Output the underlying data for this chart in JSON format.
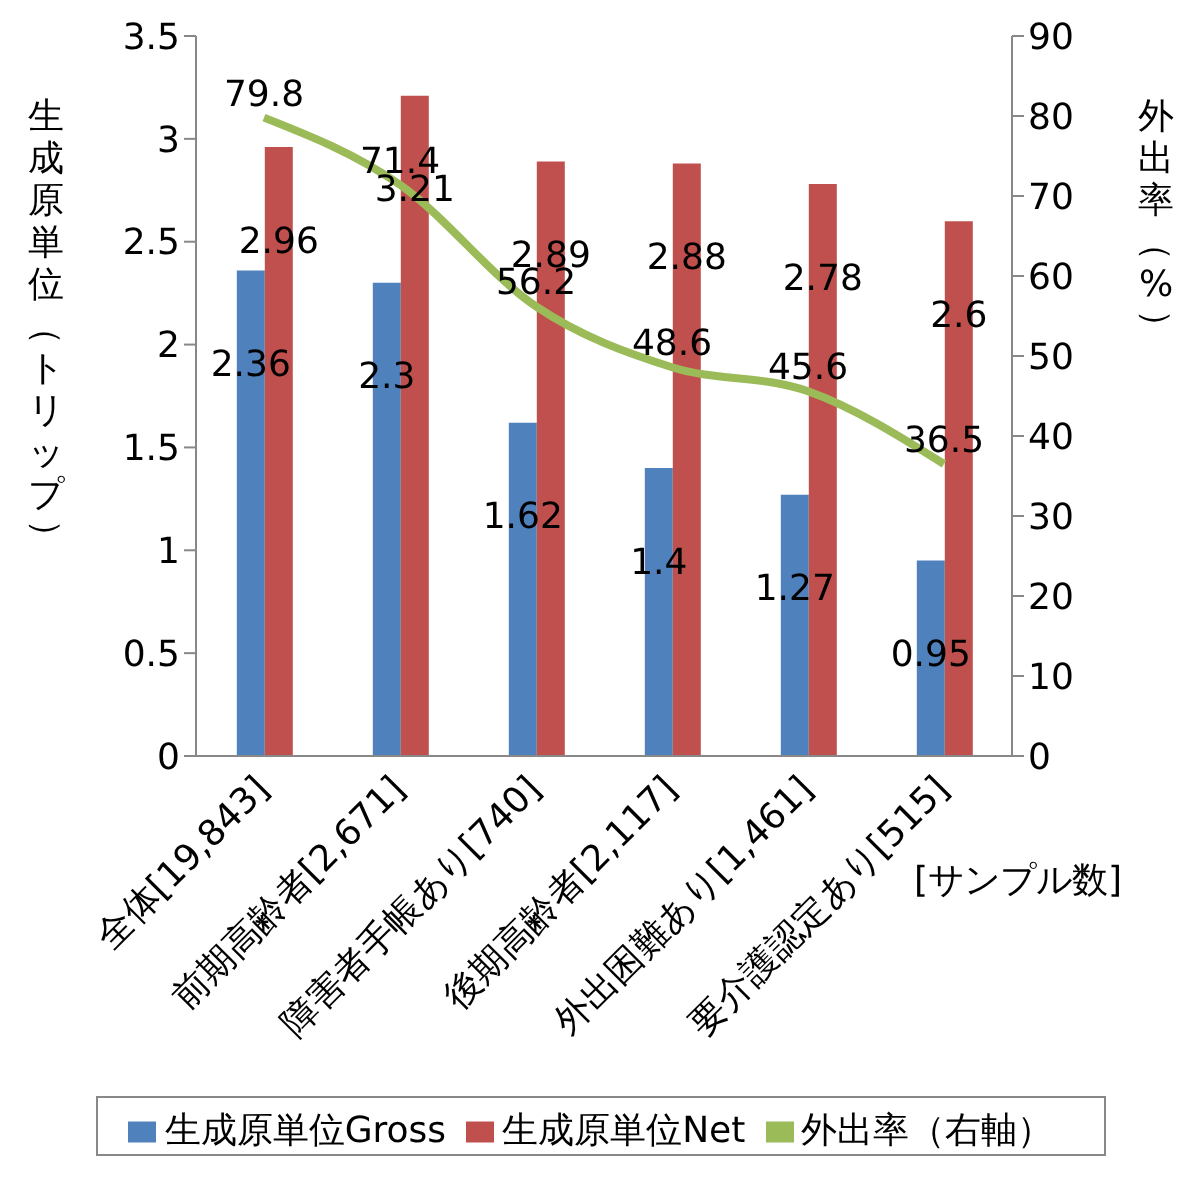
{
  "chart_data": {
    "type": "bar",
    "categories": [
      "全体[19,843]",
      "前期高齢者[2,671]",
      "障害者手帳あり[740]",
      "後期高齢者[2,117]",
      "外出困難あり[1,461]",
      "要介護認定あり[515]"
    ],
    "series": [
      {
        "name": "生成原単位Gross",
        "color": "#4f81bd",
        "values": [
          2.36,
          2.3,
          1.62,
          1.4,
          1.27,
          0.95
        ]
      },
      {
        "name": "生成原単位Net",
        "color": "#c0504d",
        "values": [
          2.96,
          3.21,
          2.89,
          2.88,
          2.78,
          2.6
        ]
      },
      {
        "name": "外出率（右軸）",
        "type": "line",
        "axis": "y2",
        "color": "#9bbb59",
        "values": [
          79.8,
          71.4,
          56.2,
          48.6,
          45.6,
          36.5
        ]
      }
    ],
    "ylabel": "生成原単位（トリップ）",
    "y2label": "外出率（%）",
    "ylim": [
      0,
      3.5
    ],
    "yticks": [
      0,
      0.5,
      1,
      1.5,
      2,
      2.5,
      3,
      3.5
    ],
    "y2lim": [
      0,
      90
    ],
    "y2ticks": [
      0,
      10,
      20,
      30,
      40,
      50,
      60,
      70,
      80,
      90
    ],
    "annotations": [
      "[サンプル数]"
    ],
    "data_labels": true,
    "grid": false,
    "legend": "bottom",
    "marker": "none",
    "line_style": "solid"
  }
}
